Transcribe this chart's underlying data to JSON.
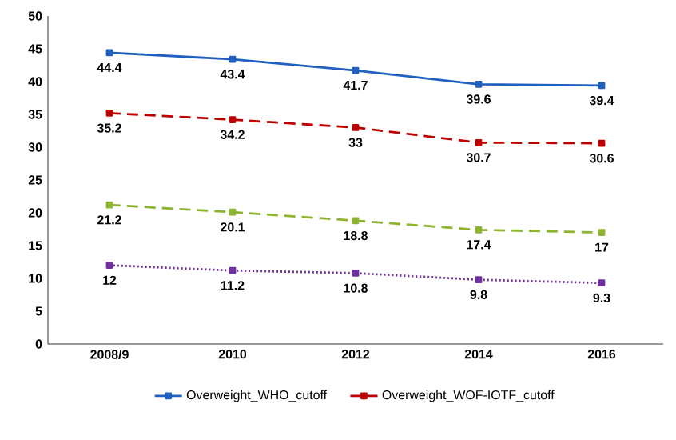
{
  "chart_data": {
    "type": "line",
    "categories": [
      "2008/9",
      "2010",
      "2012",
      "2014",
      "2016"
    ],
    "series": [
      {
        "name": "Overweight_WHO_cutoff",
        "color": "#1f5fbf",
        "line_style": "solid",
        "values": [
          44.4,
          43.4,
          41.7,
          39.6,
          39.4
        ]
      },
      {
        "name": "Overweight_WOF-IOTF_cutoff",
        "color": "#c00000",
        "line_style": "dashed",
        "values": [
          35.2,
          34.2,
          33,
          30.7,
          30.6
        ]
      },
      {
        "color": "#8db52f",
        "line_style": "dashed",
        "values": [
          21.2,
          20.1,
          18.8,
          17.4,
          17
        ]
      },
      {
        "color": "#7030a0",
        "line_style": "dotted",
        "values": [
          12,
          11.2,
          10.8,
          9.8,
          9.3
        ]
      }
    ],
    "ylim": [
      0,
      50
    ],
    "yticks": [
      0,
      5,
      10,
      15,
      20,
      25,
      30,
      35,
      40,
      45,
      50
    ],
    "marker": "square",
    "data_labels": true,
    "legend": "bottom",
    "grid": false
  }
}
